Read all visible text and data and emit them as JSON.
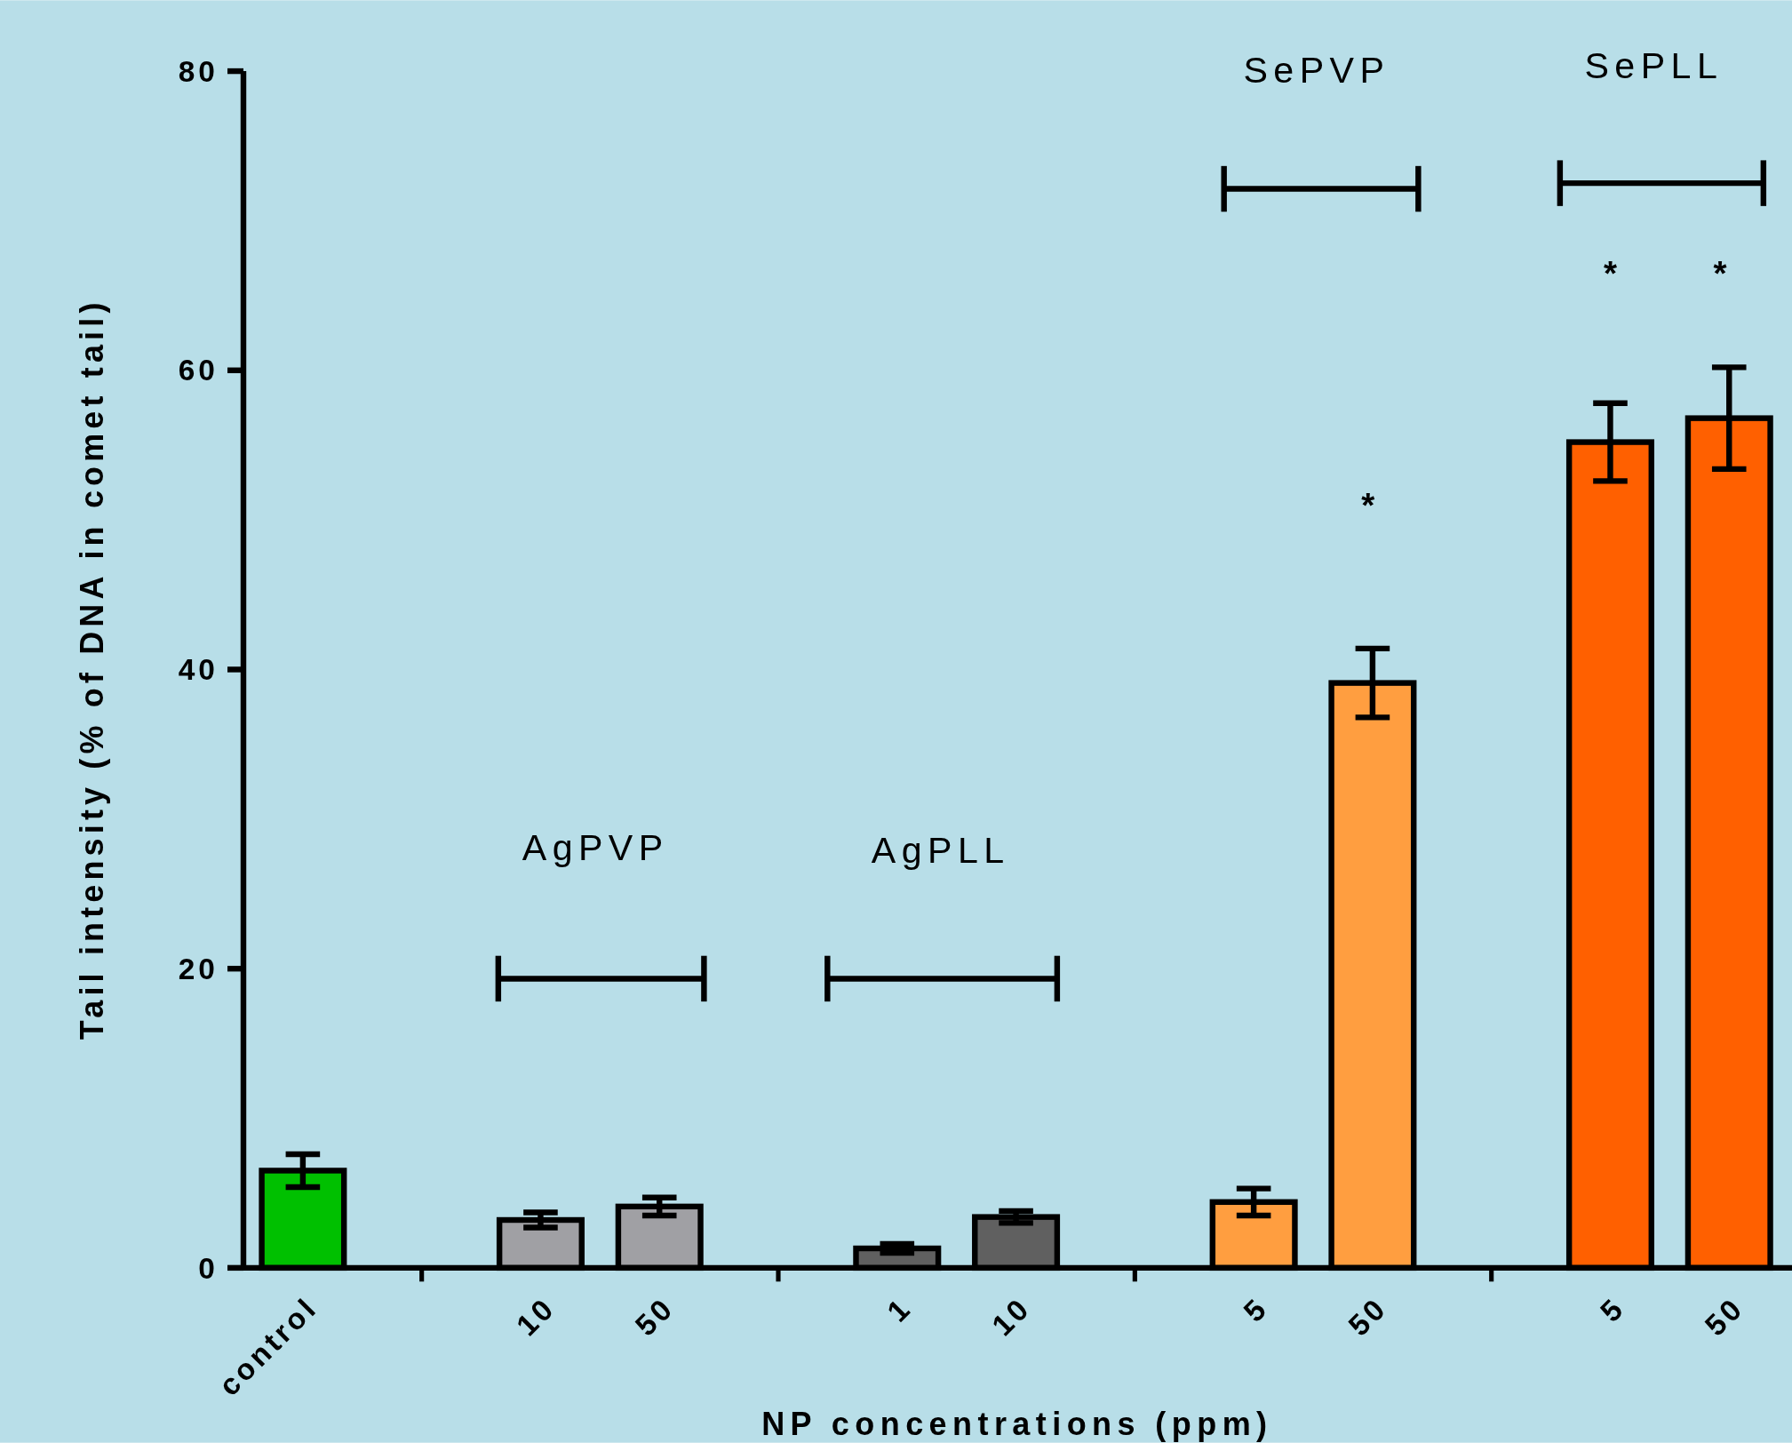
{
  "chart_data": {
    "type": "bar",
    "xlabel": "NP concentrations (ppm)",
    "ylabel": "Tail intensity (% of DNA in comet tail)",
    "categories": [
      "control",
      null,
      "10",
      "50",
      null,
      "1",
      "10",
      null,
      "5",
      "50",
      null,
      "5",
      "50"
    ],
    "values": [
      6.5,
      null,
      3.2,
      4.1,
      null,
      1.3,
      3.4,
      null,
      4.4,
      39.1,
      null,
      55.2,
      56.8
    ],
    "errors": [
      1.1,
      null,
      0.5,
      0.6,
      null,
      0.3,
      0.4,
      null,
      0.9,
      2.3,
      null,
      2.6,
      3.4
    ],
    "colors": [
      "#00c000",
      null,
      "#a0a0a4",
      "#a0a0a4",
      null,
      "#606060",
      "#606060",
      null,
      "#ff9e40",
      "#ff9e40",
      null,
      "#ff6000",
      "#ff6000"
    ],
    "ylim": [
      0,
      80
    ],
    "yticks": [
      0,
      20,
      40,
      60,
      80
    ],
    "grid": false,
    "annotations": [
      "AgPVP",
      "AgPLL",
      "SePVP",
      "SePLL",
      "*",
      "*",
      "*"
    ]
  }
}
